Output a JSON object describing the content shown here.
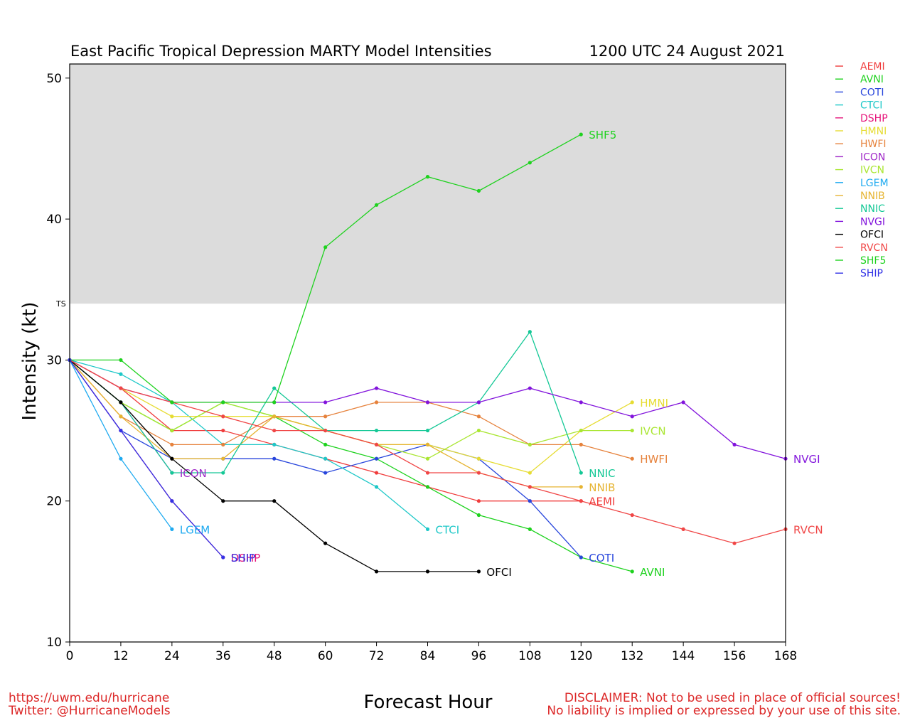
{
  "chart_data": {
    "type": "line",
    "title": "East Pacific Tropical Depression MARTY Model Intensities",
    "subtitle": "1200 UTC 24 August 2021",
    "xlabel": "Forecast Hour",
    "ylabel": "Intensity (kt)",
    "x_ticks": [
      0,
      12,
      24,
      36,
      48,
      60,
      72,
      84,
      96,
      108,
      120,
      132,
      144,
      156,
      168
    ],
    "y_ticks": [
      10,
      20,
      30,
      40,
      50
    ],
    "xlim": [
      0,
      168
    ],
    "ylim": [
      10,
      51
    ],
    "ts_threshold": 34,
    "ts_label": "TS",
    "band_color": "#dcdcdc",
    "legend_position": "right",
    "series": [
      {
        "name": "AEMI",
        "color": "#f03c3c",
        "label": "AEMI",
        "x": [
          0,
          12,
          24,
          36,
          48,
          60,
          72,
          84,
          96,
          108,
          120
        ],
        "y": [
          30,
          28,
          25,
          25,
          24,
          23,
          22,
          21,
          20,
          20,
          20
        ]
      },
      {
        "name": "AVNI",
        "color": "#1ed21e",
        "label": "AVNI",
        "x": [
          0,
          12,
          24,
          36,
          48,
          60,
          72,
          84,
          96,
          108,
          120,
          132
        ],
        "y": [
          30,
          27,
          25,
          27,
          26,
          24,
          23,
          21,
          19,
          18,
          16,
          15
        ]
      },
      {
        "name": "COTI",
        "color": "#2846dc",
        "label": "COTI",
        "x": [
          0,
          12,
          24,
          36,
          48,
          60,
          72,
          84,
          96,
          108,
          120
        ],
        "y": [
          30,
          25,
          23,
          23,
          23,
          22,
          23,
          24,
          23,
          20,
          16
        ]
      },
      {
        "name": "CTCI",
        "color": "#1ec8c8",
        "label": "CTCI",
        "x": [
          0,
          12,
          24,
          36,
          48,
          60,
          72,
          84
        ],
        "y": [
          30,
          29,
          27,
          24,
          24,
          23,
          21,
          18
        ]
      },
      {
        "name": "DSHP",
        "color": "#e6147a",
        "label": "DSHP",
        "x": [
          0,
          12,
          24,
          36
        ],
        "y": [
          30,
          25,
          20,
          16
        ]
      },
      {
        "name": "HMNI",
        "color": "#e6dc32",
        "label": "HMNI",
        "x": [
          0,
          12,
          24,
          36,
          48,
          60,
          72,
          84,
          96,
          108,
          120,
          132
        ],
        "y": [
          30,
          28,
          26,
          26,
          26,
          25,
          24,
          24,
          23,
          22,
          25,
          27
        ]
      },
      {
        "name": "HWFI",
        "color": "#e6823c",
        "label": "HWFI",
        "x": [
          0,
          12,
          24,
          36,
          48,
          60,
          72,
          84,
          96,
          108,
          120,
          132
        ],
        "y": [
          30,
          26,
          24,
          24,
          26,
          26,
          27,
          27,
          26,
          24,
          24,
          23
        ]
      },
      {
        "name": "ICON",
        "color": "#a028c8",
        "label": "ICON",
        "x": [
          0,
          12,
          24
        ],
        "y": [
          30,
          27,
          22
        ]
      },
      {
        "name": "IVCN",
        "color": "#aae632",
        "label": "IVCN",
        "x": [
          0,
          12,
          24,
          36,
          48,
          60,
          72,
          84,
          96,
          108,
          120,
          132
        ],
        "y": [
          30,
          27,
          25,
          27,
          26,
          25,
          24,
          23,
          25,
          24,
          25,
          25
        ]
      },
      {
        "name": "LGEM",
        "color": "#1eaaf0",
        "label": "LGEM",
        "x": [
          0,
          12,
          24
        ],
        "y": [
          30,
          23,
          18
        ]
      },
      {
        "name": "NNIB",
        "color": "#e6b432",
        "label": "NNIB",
        "x": [
          0,
          12,
          24,
          36,
          48,
          60,
          72,
          84,
          96,
          108,
          120
        ],
        "y": [
          30,
          26,
          23,
          23,
          26,
          25,
          24,
          24,
          22,
          21,
          21
        ]
      },
      {
        "name": "NNIC",
        "color": "#14c896",
        "label": "NNIC",
        "x": [
          0,
          12,
          24,
          36,
          48,
          60,
          72,
          84,
          96,
          108,
          120
        ],
        "y": [
          30,
          27,
          22,
          22,
          28,
          25,
          25,
          25,
          27,
          32,
          22
        ]
      },
      {
        "name": "NVGI",
        "color": "#8214dc",
        "label": "NVGI",
        "x": [
          0,
          12,
          24,
          36,
          48,
          60,
          72,
          84,
          96,
          108,
          120,
          132,
          144,
          156,
          168
        ],
        "y": [
          30,
          28,
          27,
          27,
          27,
          27,
          28,
          27,
          27,
          28,
          27,
          26,
          27,
          24,
          23
        ]
      },
      {
        "name": "OFCI",
        "color": "#000000",
        "label": "OFCI",
        "x": [
          0,
          12,
          24,
          36,
          48,
          60,
          72,
          84,
          96
        ],
        "y": [
          30,
          27,
          23,
          20,
          20,
          17,
          15,
          15,
          15
        ]
      },
      {
        "name": "RVCN",
        "color": "#f04646",
        "label": "RVCN",
        "x": [
          0,
          12,
          24,
          36,
          48,
          60,
          72,
          84,
          96,
          108,
          120,
          132,
          144,
          156,
          168
        ],
        "y": [
          30,
          28,
          27,
          26,
          25,
          25,
          24,
          22,
          22,
          21,
          20,
          19,
          18,
          17,
          18
        ]
      },
      {
        "name": "SHF5",
        "color": "#1ed21e",
        "label": "SHF5",
        "x": [
          0,
          12,
          24,
          36,
          48,
          60,
          72,
          84,
          96,
          108,
          120
        ],
        "y": [
          30,
          30,
          27,
          27,
          27,
          38,
          41,
          43,
          42,
          44,
          46
        ]
      },
      {
        "name": "SHIP",
        "color": "#3232e6",
        "label": "SHIP",
        "x": [
          0,
          12,
          24,
          36
        ],
        "y": [
          30,
          25,
          20,
          16
        ]
      }
    ]
  },
  "footer": {
    "left_line1": "https://uwm.edu/hurricane",
    "left_line2": "Twitter: @HurricaneModels",
    "right_line1": "DISCLAIMER: Not to be used in place of official sources!",
    "right_line2": "No liability is implied or expressed by your use of this site."
  }
}
